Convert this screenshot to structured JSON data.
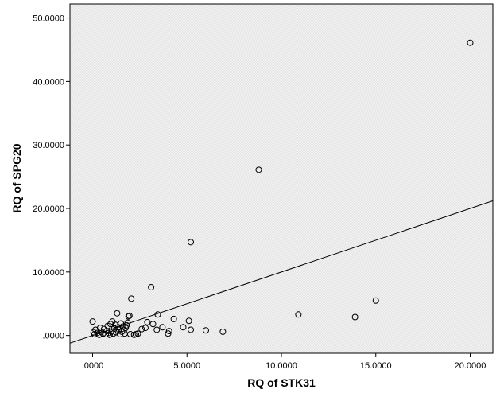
{
  "chart_data": {
    "type": "scatter",
    "xlabel": "RQ of STK31",
    "ylabel": "RQ of SPG20",
    "xlim": [
      -1.2,
      21.2
    ],
    "ylim": [
      -2.8,
      52.2
    ],
    "x_ticks": [
      0,
      5,
      10,
      15,
      20
    ],
    "x_tick_labels": [
      ".0000",
      "5.0000",
      "10.0000",
      "15.0000",
      "20.0000"
    ],
    "y_ticks": [
      0,
      10,
      20,
      30,
      40,
      50
    ],
    "y_tick_labels": [
      ".0000",
      "10.0000",
      "20.0000",
      "30.0000",
      "40.0000",
      "50.0000"
    ],
    "reference_line": {
      "type": "identity",
      "slope": 1,
      "intercept": 0
    },
    "grid": false,
    "points": [
      {
        "x": 0.0,
        "y": 2.2
      },
      {
        "x": 0.05,
        "y": 0.5
      },
      {
        "x": 0.1,
        "y": 0.2
      },
      {
        "x": 0.15,
        "y": 0.9
      },
      {
        "x": 0.25,
        "y": 0.4
      },
      {
        "x": 0.35,
        "y": 0.1
      },
      {
        "x": 0.4,
        "y": 1.2
      },
      {
        "x": 0.45,
        "y": 0.6
      },
      {
        "x": 0.55,
        "y": 0.3
      },
      {
        "x": 0.6,
        "y": 1.0
      },
      {
        "x": 0.7,
        "y": 0.2
      },
      {
        "x": 0.75,
        "y": 0.7
      },
      {
        "x": 0.8,
        "y": 1.5
      },
      {
        "x": 0.85,
        "y": 0.4
      },
      {
        "x": 0.9,
        "y": 0.1
      },
      {
        "x": 0.95,
        "y": 1.8
      },
      {
        "x": 1.0,
        "y": 0.6
      },
      {
        "x": 1.05,
        "y": 2.2
      },
      {
        "x": 1.1,
        "y": 0.3
      },
      {
        "x": 1.15,
        "y": 1.1
      },
      {
        "x": 1.2,
        "y": 1.7
      },
      {
        "x": 1.25,
        "y": 0.5
      },
      {
        "x": 1.3,
        "y": 3.5
      },
      {
        "x": 1.35,
        "y": 1.3
      },
      {
        "x": 1.4,
        "y": 0.9
      },
      {
        "x": 1.45,
        "y": 0.2
      },
      {
        "x": 1.5,
        "y": 1.9
      },
      {
        "x": 1.55,
        "y": 0.6
      },
      {
        "x": 1.6,
        "y": 1.4
      },
      {
        "x": 1.65,
        "y": 0.8
      },
      {
        "x": 1.7,
        "y": 0.3
      },
      {
        "x": 1.75,
        "y": 1.2
      },
      {
        "x": 1.8,
        "y": 1.6
      },
      {
        "x": 1.85,
        "y": 2.0
      },
      {
        "x": 1.9,
        "y": 3.0
      },
      {
        "x": 1.95,
        "y": 3.1
      },
      {
        "x": 2.0,
        "y": 0.2
      },
      {
        "x": 2.05,
        "y": 5.8
      },
      {
        "x": 2.2,
        "y": 0.1
      },
      {
        "x": 2.3,
        "y": 0.2
      },
      {
        "x": 2.4,
        "y": 0.3
      },
      {
        "x": 2.6,
        "y": 1.0
      },
      {
        "x": 2.8,
        "y": 1.2
      },
      {
        "x": 2.9,
        "y": 2.1
      },
      {
        "x": 3.1,
        "y": 7.6
      },
      {
        "x": 3.2,
        "y": 1.8
      },
      {
        "x": 3.4,
        "y": 0.9
      },
      {
        "x": 3.45,
        "y": 3.3
      },
      {
        "x": 3.7,
        "y": 1.3
      },
      {
        "x": 4.0,
        "y": 0.3
      },
      {
        "x": 4.05,
        "y": 0.7
      },
      {
        "x": 4.3,
        "y": 2.6
      },
      {
        "x": 4.8,
        "y": 1.3
      },
      {
        "x": 5.1,
        "y": 2.3
      },
      {
        "x": 5.2,
        "y": 0.9
      },
      {
        "x": 5.2,
        "y": 14.7
      },
      {
        "x": 6.0,
        "y": 0.8
      },
      {
        "x": 6.9,
        "y": 0.6
      },
      {
        "x": 8.8,
        "y": 26.1
      },
      {
        "x": 10.9,
        "y": 3.3
      },
      {
        "x": 13.9,
        "y": 2.9
      },
      {
        "x": 15.0,
        "y": 5.5
      },
      {
        "x": 20.0,
        "y": 46.1
      }
    ]
  }
}
